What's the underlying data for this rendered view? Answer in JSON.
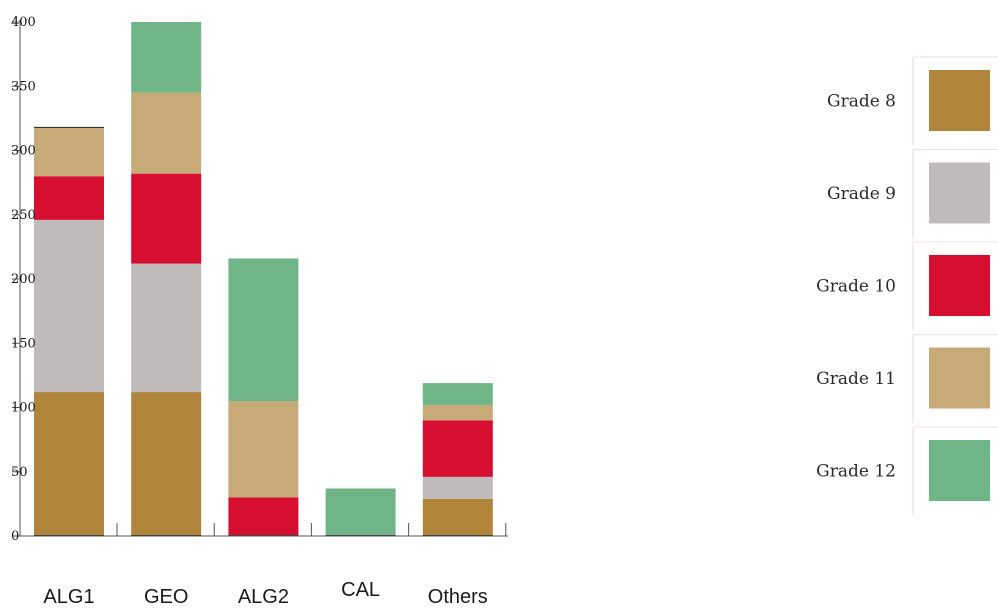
{
  "chart_data": {
    "type": "bar",
    "stacked": true,
    "categories": [
      "ALG1",
      "GEO",
      "ALG2",
      "CAL",
      "Others"
    ],
    "series": [
      {
        "name": "Grade 8",
        "color": "#b0843a",
        "values": [
          112,
          112,
          0,
          0,
          29
        ]
      },
      {
        "name": "Grade 9",
        "color": "#bfbbba",
        "values": [
          134,
          100,
          0,
          0,
          17
        ]
      },
      {
        "name": "Grade 10",
        "color": "#d60f30",
        "values": [
          34,
          70,
          30,
          0,
          44
        ]
      },
      {
        "name": "Grade 11",
        "color": "#c8aa78",
        "values": [
          38,
          63,
          75,
          0,
          12
        ]
      },
      {
        "name": "Grade 12",
        "color": "#6fb588",
        "values": [
          0,
          55,
          111,
          37,
          17
        ]
      }
    ],
    "y_ticks": [
      "0",
      "50",
      "100",
      "150",
      "200",
      "250",
      "300",
      "350",
      "400"
    ],
    "ylim": [
      0,
      400
    ],
    "legend_position": "right",
    "grid": false
  }
}
